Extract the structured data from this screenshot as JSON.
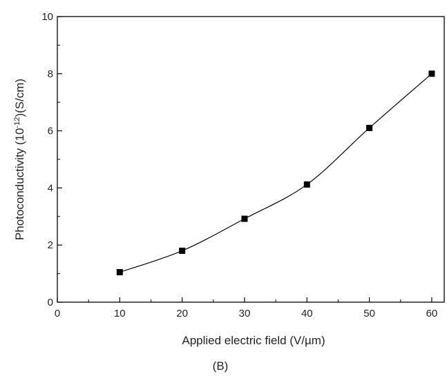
{
  "chart_data": {
    "type": "line",
    "caption": "(B)",
    "xlabel": "Applied electric field (V/µm)",
    "ylabel_main": "Photoconductivity (10",
    "ylabel_exp": "-12",
    "ylabel_tail": ")(S/cm)",
    "xlim": [
      0,
      62
    ],
    "ylim": [
      0,
      10
    ],
    "x_ticks": [
      0,
      10,
      20,
      30,
      40,
      50,
      60
    ],
    "y_ticks": [
      0,
      2,
      4,
      6,
      8,
      10
    ],
    "grid": false,
    "series": [
      {
        "x": [
          10,
          20,
          30,
          40,
          50,
          60
        ],
        "y": [
          1.05,
          1.8,
          2.92,
          4.12,
          6.1,
          8.0
        ],
        "color": "#000000",
        "marker": "square"
      }
    ]
  }
}
